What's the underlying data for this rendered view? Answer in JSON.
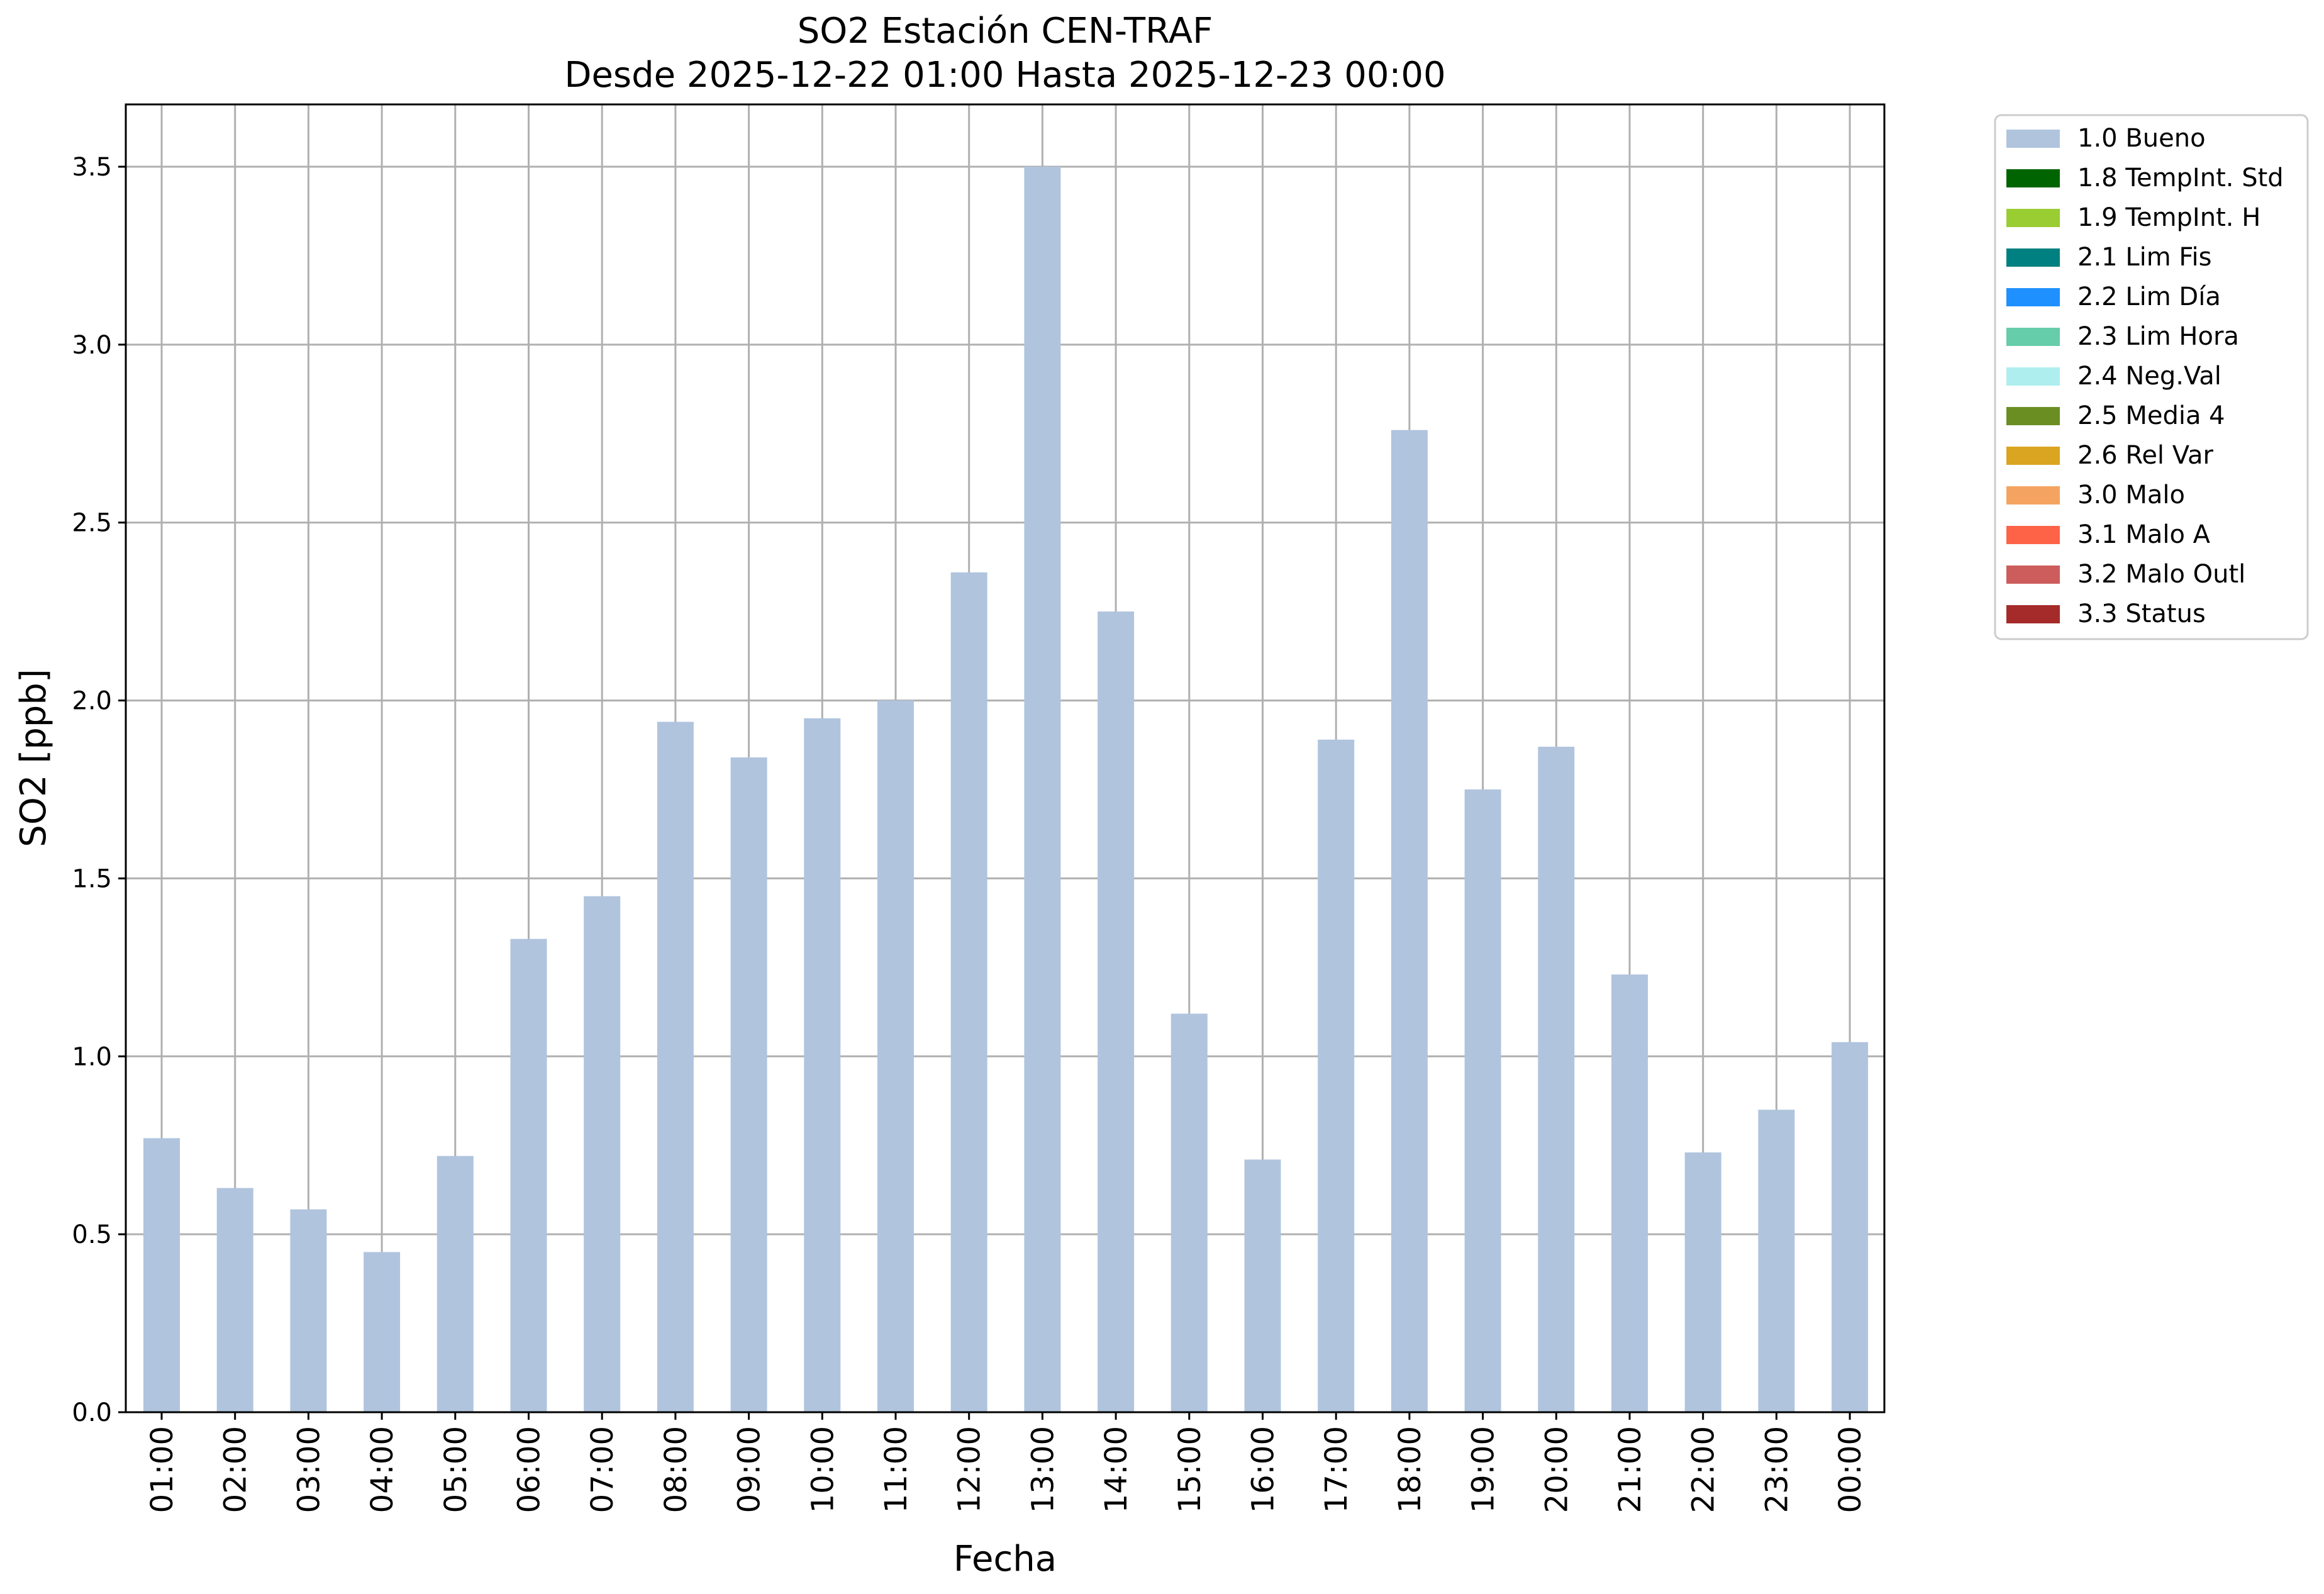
{
  "chart_data": {
    "type": "bar",
    "title": "SO2 Estación CEN-TRAF",
    "subtitle": "Desde 2025-12-22 01:00 Hasta 2025-12-23 00:00",
    "xlabel": "Fecha",
    "ylabel": "SO2 [ppb]",
    "ylim": [
      0,
      3.675
    ],
    "yticks": [
      "0.0",
      "0.5",
      "1.0",
      "1.5",
      "2.0",
      "2.5",
      "3.0",
      "3.5"
    ],
    "grid": true,
    "legend_position": "outside-top-right",
    "categories": [
      "01:00",
      "02:00",
      "03:00",
      "04:00",
      "05:00",
      "06:00",
      "07:00",
      "08:00",
      "09:00",
      "10:00",
      "11:00",
      "12:00",
      "13:00",
      "14:00",
      "15:00",
      "16:00",
      "17:00",
      "18:00",
      "19:00",
      "20:00",
      "21:00",
      "22:00",
      "23:00",
      "00:00"
    ],
    "series": [
      {
        "name": "1.0 Bueno",
        "color": "#b0c4de",
        "values": [
          0.77,
          0.63,
          0.57,
          0.45,
          0.72,
          1.33,
          1.45,
          1.94,
          1.84,
          1.95,
          2.0,
          2.36,
          3.5,
          2.25,
          1.12,
          0.71,
          1.89,
          2.76,
          1.75,
          1.87,
          1.23,
          0.73,
          0.85,
          1.04
        ]
      }
    ],
    "legend": [
      {
        "label": "1.0 Bueno",
        "color": "#b0c4de"
      },
      {
        "label": "1.8 TempInt. Std",
        "color": "#006400"
      },
      {
        "label": "1.9 TempInt. H",
        "color": "#9acd32"
      },
      {
        "label": "2.1 Lim Fis",
        "color": "#008080"
      },
      {
        "label": "2.2 Lim Día",
        "color": "#1e90ff"
      },
      {
        "label": "2.3 Lim Hora",
        "color": "#66cdaa"
      },
      {
        "label": "2.4 Neg.Val",
        "color": "#afeeee"
      },
      {
        "label": "2.5 Media 4",
        "color": "#6b8e23"
      },
      {
        "label": "2.6 Rel Var",
        "color": "#daa520"
      },
      {
        "label": "3.0 Malo",
        "color": "#f4a460"
      },
      {
        "label": "3.1 Malo A",
        "color": "#ff6347"
      },
      {
        "label": "3.2 Malo Outl",
        "color": "#cd5c5c"
      },
      {
        "label": "3.3 Status",
        "color": "#a52a2a"
      }
    ]
  }
}
